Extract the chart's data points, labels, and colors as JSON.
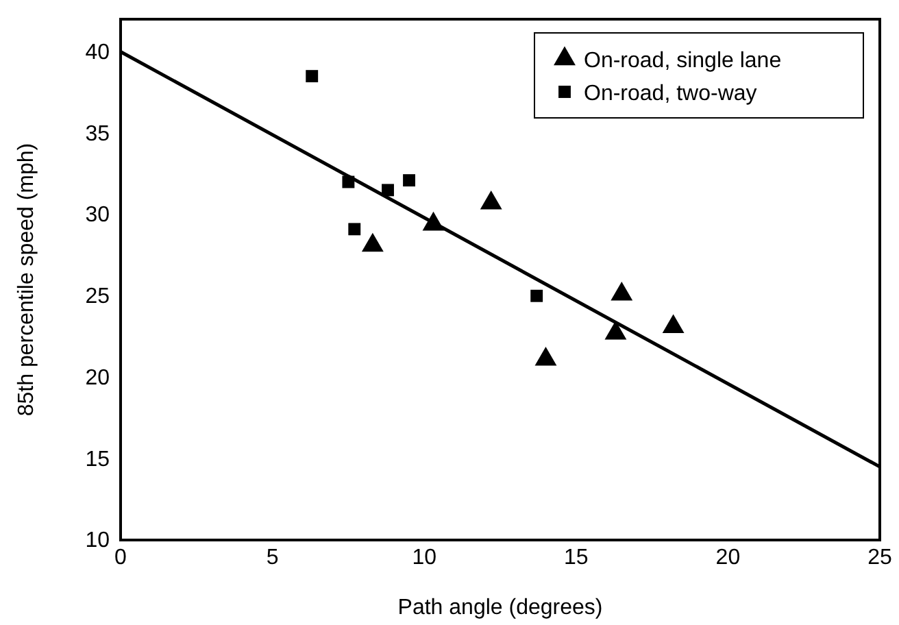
{
  "chart_data": {
    "type": "scatter",
    "xlabel": "Path angle (degrees)",
    "ylabel": "85th percentile speed (mph)",
    "xlim": [
      0,
      25
    ],
    "xticks": [
      0,
      5,
      10,
      15,
      20,
      25
    ],
    "ylim": [
      10,
      42
    ],
    "yticks": [
      10,
      15,
      20,
      25,
      30,
      35,
      40
    ],
    "grid": false,
    "legend": "top right",
    "series": [
      {
        "name": "On-road, single lane",
        "color": "#000000",
        "marker": "triangle",
        "x": [
          8.3,
          10.3,
          12.2,
          14.0,
          16.3,
          16.5,
          18.2
        ],
        "values": [
          28.1,
          29.4,
          30.7,
          21.1,
          22.7,
          25.1,
          23.1
        ]
      },
      {
        "name": "On-road, two-way",
        "color": "#000000",
        "marker": "square",
        "x": [
          6.3,
          7.5,
          7.7,
          8.8,
          9.5,
          13.7
        ],
        "values": [
          38.5,
          32.0,
          29.1,
          31.5,
          32.1,
          25.0
        ]
      },
      {
        "type": "line",
        "color": "#000000",
        "marker": "none",
        "x": [
          0,
          25
        ],
        "values": [
          40,
          14.5
        ]
      }
    ]
  }
}
